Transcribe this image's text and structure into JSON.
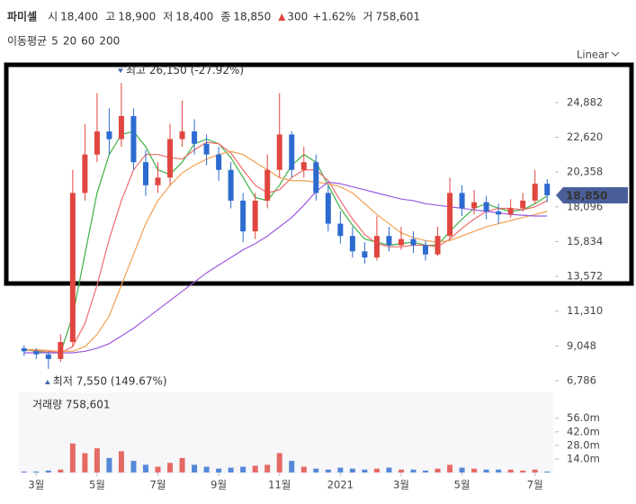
{
  "header": {
    "name": "파미셀",
    "items": [
      {
        "label": "시",
        "value": "18,400"
      },
      {
        "label": "고",
        "value": "18,900"
      },
      {
        "label": "저",
        "value": "18,400"
      },
      {
        "label": "종",
        "value": "18,850"
      }
    ],
    "change": "300",
    "change_pct": "+1.62%",
    "volume_label": "거",
    "volume": "758,601"
  },
  "scale_label": "Linear",
  "chart_data": {
    "type": "candlestick",
    "up_color": "#e0463f",
    "down_color": "#2d6bd0",
    "categories": [
      null,
      "3월",
      null,
      null,
      null,
      null,
      "5월",
      null,
      null,
      null,
      null,
      "7월",
      null,
      null,
      null,
      null,
      "9월",
      null,
      null,
      null,
      null,
      "11월",
      null,
      null,
      null,
      null,
      "2021",
      null,
      null,
      null,
      null,
      "3월",
      null,
      null,
      null,
      null,
      "5월",
      null,
      null,
      null,
      null,
      null,
      "7월",
      null
    ],
    "open": [
      8900,
      8700,
      8500,
      8200,
      9300,
      19000,
      21500,
      23000,
      22500,
      24000,
      21000,
      19500,
      20000,
      22500,
      23000,
      22200,
      21500,
      20500,
      18500,
      16500,
      18500,
      20500,
      22800,
      20500,
      21000,
      19000,
      17000,
      16200,
      15200,
      14800,
      16200,
      15600,
      16000,
      15600,
      15000,
      16200,
      19000,
      18000,
      18400,
      17800,
      17600,
      18000,
      18500,
      19600
    ],
    "high": [
      9100,
      8900,
      8700,
      9800,
      20500,
      23500,
      25500,
      24500,
      26150,
      24500,
      21800,
      21000,
      23500,
      25000,
      23800,
      22800,
      22000,
      21000,
      19000,
      19000,
      21500,
      25500,
      23000,
      22000,
      21500,
      19500,
      17800,
      16800,
      15800,
      17500,
      16800,
      16800,
      16500,
      15900,
      16800,
      20000,
      19500,
      19200,
      18800,
      18300,
      18600,
      19000,
      20500,
      19900
    ],
    "low": [
      8400,
      8200,
      7550,
      8000,
      9000,
      18500,
      21000,
      21500,
      22000,
      20500,
      18800,
      19000,
      19500,
      22000,
      21500,
      20800,
      19800,
      18000,
      15800,
      16000,
      18000,
      20000,
      20000,
      20000,
      18500,
      16500,
      15700,
      14800,
      14400,
      14600,
      15200,
      15300,
      15100,
      14600,
      14900,
      16000,
      17500,
      17600,
      17300,
      17000,
      17400,
      17800,
      18300,
      18400
    ],
    "close": [
      8700,
      8500,
      8200,
      9300,
      19000,
      21500,
      23000,
      22500,
      24000,
      21000,
      19500,
      20000,
      22500,
      23000,
      22200,
      21500,
      20500,
      18500,
      16500,
      18500,
      20500,
      22800,
      20500,
      21000,
      19000,
      17000,
      16200,
      15200,
      14800,
      16200,
      15600,
      16000,
      15600,
      15000,
      16200,
      19000,
      18000,
      18400,
      17800,
      17600,
      18000,
      18500,
      19600,
      18850
    ],
    "ma_title": "이동평균",
    "ma": [
      {
        "name": "5",
        "color": "#3cb043",
        "values": [
          8800,
          8700,
          8600,
          8600,
          11000,
          15000,
          19000,
          21500,
          22800,
          23000,
          22000,
          20500,
          20200,
          21000,
          22200,
          22500,
          22200,
          21300,
          20000,
          18700,
          18500,
          19500,
          20800,
          21500,
          21000,
          19500,
          18000,
          16900,
          16000,
          15800,
          15600,
          15700,
          15800,
          15600,
          15600,
          16500,
          17300,
          18000,
          18300,
          18000,
          17800,
          17900,
          18300,
          18800
        ]
      },
      {
        "name": "20",
        "color": "#f06a6a",
        "values": [
          8800,
          8750,
          8700,
          8600,
          9000,
          10500,
          13000,
          16000,
          18500,
          20500,
          21500,
          21500,
          21300,
          21200,
          21800,
          22300,
          22200,
          21600,
          20500,
          19500,
          19000,
          19200,
          20000,
          20500,
          20500,
          19800,
          18500,
          17300,
          16300,
          15700,
          15500,
          15500,
          15600,
          15600,
          15500,
          16000,
          16700,
          17300,
          17800,
          18000,
          18000,
          17900,
          18100,
          18500
        ]
      },
      {
        "name": "60",
        "color": "#f0a050",
        "values": [
          8800,
          8800,
          8750,
          8700,
          8700,
          9000,
          9800,
          11000,
          13000,
          15000,
          17000,
          18500,
          19500,
          20300,
          20800,
          21200,
          21500,
          21700,
          21500,
          21000,
          20500,
          20000,
          19800,
          19800,
          19700,
          19600,
          19400,
          19000,
          18300,
          17600,
          17000,
          16400,
          16100,
          15900,
          15800,
          15900,
          16200,
          16500,
          16800,
          17000,
          17200,
          17400,
          17600,
          17800
        ]
      },
      {
        "name": "200",
        "color": "#9b59e0",
        "values": [
          8600,
          8600,
          8600,
          8600,
          8600,
          8700,
          8900,
          9200,
          9700,
          10200,
          10800,
          11400,
          12000,
          12600,
          13200,
          13800,
          14300,
          14800,
          15300,
          15700,
          16200,
          16800,
          17400,
          18200,
          19100,
          19700,
          19600,
          19400,
          19200,
          19000,
          18800,
          18600,
          18500,
          18300,
          18200,
          18100,
          18000,
          17900,
          17800,
          17700,
          17600,
          17550,
          17500,
          17500
        ]
      }
    ],
    "ylim": [
      6260,
      27160
    ],
    "yticks": [
      {
        "value": 24882,
        "label": "24,882"
      },
      {
        "value": 22620,
        "label": "22,620"
      },
      {
        "value": 20358,
        "label": "20,358"
      },
      {
        "value": 18096,
        "label": "18,096"
      },
      {
        "value": 15834,
        "label": "15,834"
      },
      {
        "value": 13572,
        "label": "13,572"
      },
      {
        "value": 11310,
        "label": "11,310"
      },
      {
        "value": 9048,
        "label": "9,048"
      },
      {
        "value": 6786,
        "label": "6,786"
      }
    ],
    "high_label": "최고 26,150 (-27.92%)",
    "low_label": "최저 7,550 (149.67%)",
    "price_tag": {
      "value": 18850,
      "label": "18,850"
    },
    "volume_title": "거래량 758,601",
    "volume": [
      1,
      1,
      2,
      3,
      30,
      20,
      25,
      15,
      22,
      12,
      8,
      6,
      10,
      15,
      8,
      6,
      4,
      5,
      6,
      7,
      8,
      20,
      12,
      6,
      4,
      3,
      5,
      4,
      3,
      4,
      5,
      3,
      3,
      2,
      4,
      8,
      5,
      4,
      3,
      3,
      3,
      2,
      3,
      1
    ],
    "volume_ylim": [
      0,
      79
    ],
    "volume_yticks": [
      {
        "value": 56,
        "label": "56.0m"
      },
      {
        "value": 42,
        "label": "42.0m"
      },
      {
        "value": 28,
        "label": "28.0m"
      },
      {
        "value": 14,
        "label": "14.0m"
      }
    ]
  }
}
